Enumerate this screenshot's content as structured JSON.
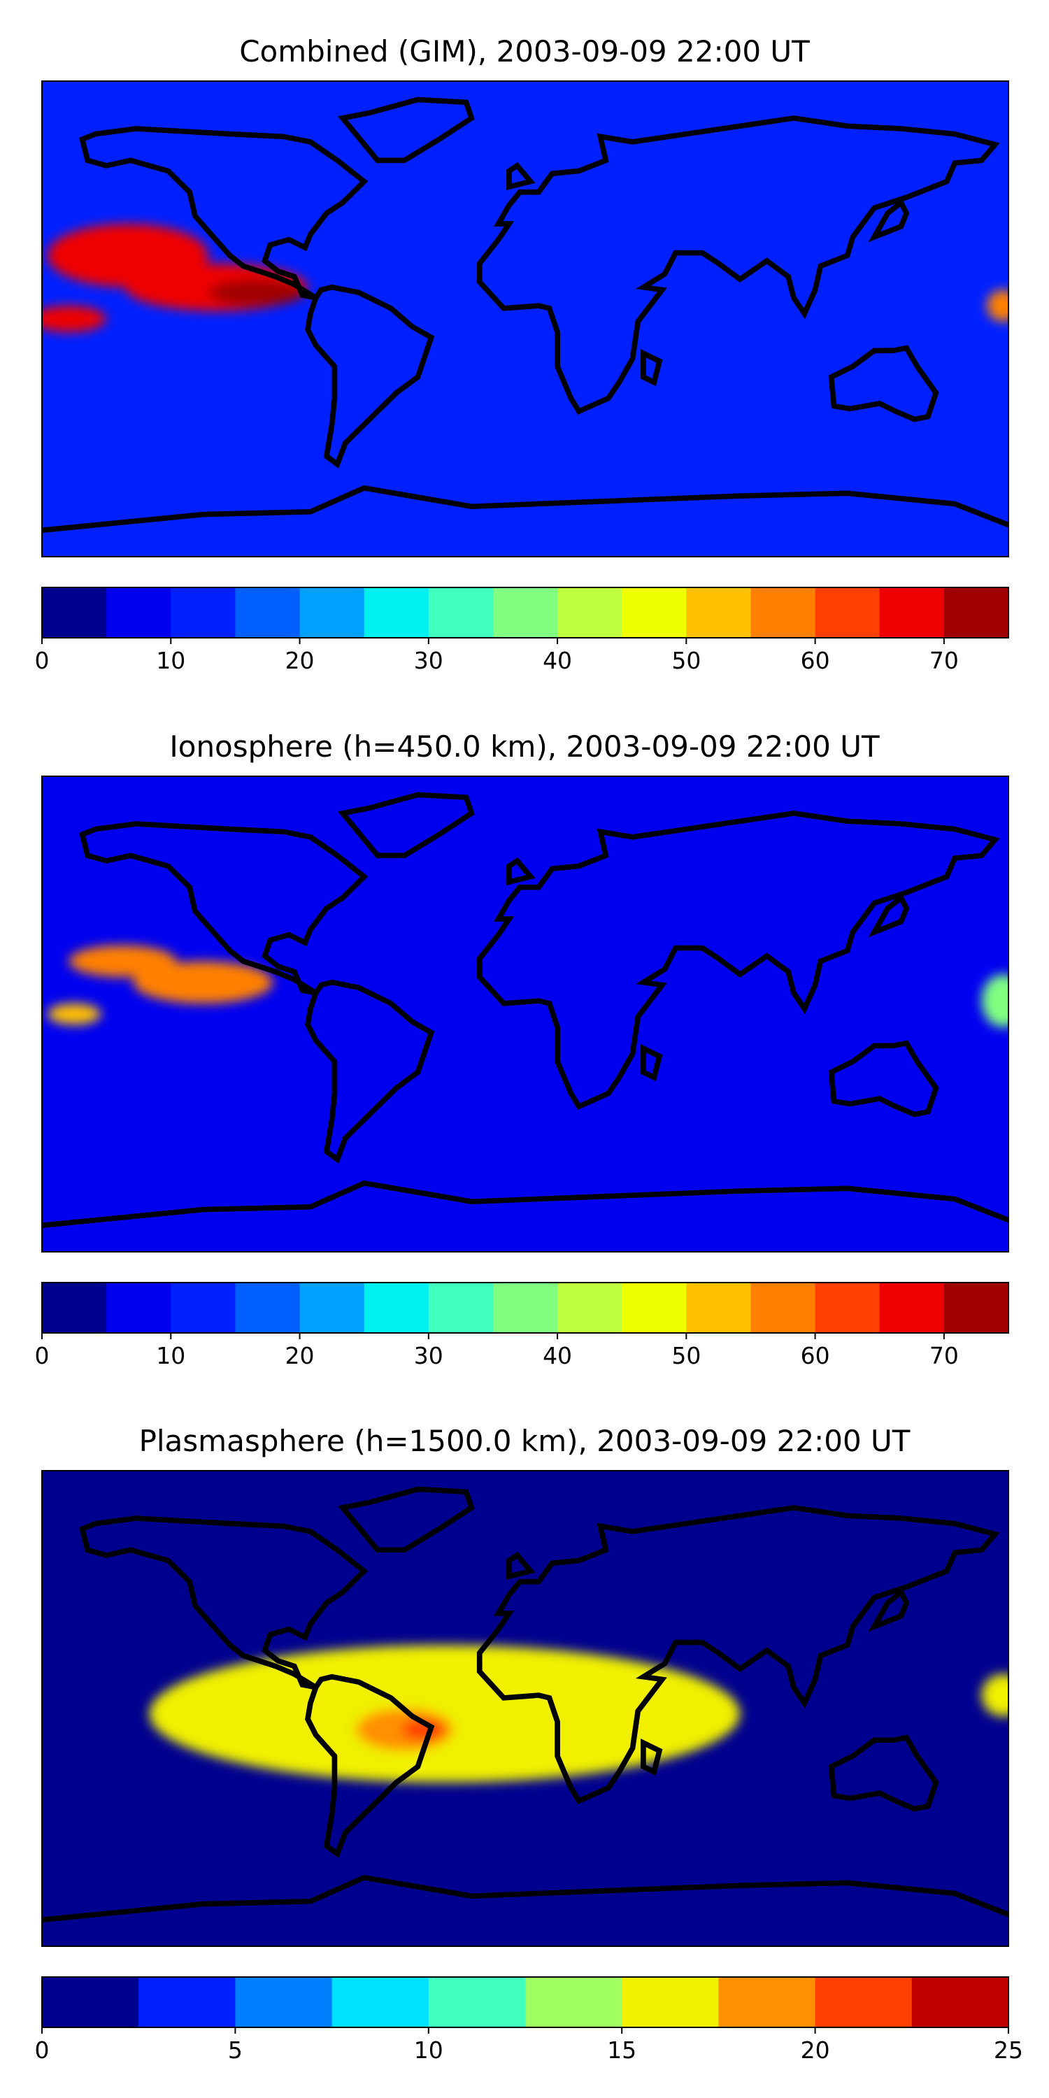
{
  "chart_data": [
    {
      "type": "heatmap",
      "title": "Combined (GIM), 2003-09-09 22:00 UT",
      "colorbar": {
        "levels": [
          0,
          5,
          10,
          15,
          20,
          25,
          30,
          35,
          40,
          45,
          50,
          55,
          60,
          65,
          70,
          75
        ],
        "tick_values": [
          0,
          10,
          20,
          30,
          40,
          50,
          60,
          70
        ],
        "tick_labels": [
          "0",
          "10",
          "20",
          "30",
          "40",
          "50",
          "60",
          "70"
        ],
        "colors": [
          "#00008f",
          "#0000ef",
          "#0020ff",
          "#0060ff",
          "#00a0ff",
          "#00f0f0",
          "#40ffbf",
          "#80ff80",
          "#bfff40",
          "#efff00",
          "#ffc000",
          "#ff8000",
          "#ff4000",
          "#ef0000",
          "#a00000"
        ]
      },
      "background_level": 2,
      "features": [
        {
          "lon": -148,
          "lat": 24,
          "rx": 30,
          "ry": 12,
          "level": 13
        },
        {
          "lon": -115,
          "lat": 12,
          "rx": 34,
          "ry": 9,
          "level": 13
        },
        {
          "lon": -100,
          "lat": 10,
          "rx": 18,
          "ry": 5,
          "level": 14
        },
        {
          "lon": -170,
          "lat": 0,
          "rx": 14,
          "ry": 5,
          "level": 13
        },
        {
          "lon": 178,
          "lat": 5,
          "rx": 6,
          "ry": 6,
          "level": 11
        }
      ]
    },
    {
      "type": "heatmap",
      "title": "Ionosphere  (h=450.0 km), 2003-09-09 22:00 UT",
      "colorbar": {
        "levels": [
          0,
          5,
          10,
          15,
          20,
          25,
          30,
          35,
          40,
          45,
          50,
          55,
          60,
          65,
          70,
          75
        ],
        "tick_values": [
          0,
          10,
          20,
          30,
          40,
          50,
          60,
          70
        ],
        "tick_labels": [
          "0",
          "10",
          "20",
          "30",
          "40",
          "50",
          "60",
          "70"
        ],
        "colors": [
          "#00008f",
          "#0000ef",
          "#0020ff",
          "#0060ff",
          "#00a0ff",
          "#00f0f0",
          "#40ffbf",
          "#80ff80",
          "#bfff40",
          "#efff00",
          "#ffc000",
          "#ff8000",
          "#ff4000",
          "#ef0000",
          "#a00000"
        ]
      },
      "background_level": 1,
      "features": [
        {
          "lon": -150,
          "lat": 20,
          "rx": 20,
          "ry": 6,
          "level": 11
        },
        {
          "lon": -120,
          "lat": 12,
          "rx": 26,
          "ry": 8,
          "level": 11
        },
        {
          "lon": -168,
          "lat": 0,
          "rx": 10,
          "ry": 4,
          "level": 10
        },
        {
          "lon": 178,
          "lat": 5,
          "rx": 8,
          "ry": 10,
          "level": 7
        }
      ]
    },
    {
      "type": "heatmap",
      "title": "Plasmasphere (h=1500.0 km), 2003-09-09 22:00 UT",
      "colorbar": {
        "levels": [
          0,
          2.5,
          5,
          7.5,
          10,
          12.5,
          15,
          17.5,
          20,
          22.5,
          25
        ],
        "tick_values": [
          0,
          5,
          10,
          15,
          20,
          25
        ],
        "tick_labels": [
          "0",
          "5",
          "10",
          "15",
          "20",
          "25"
        ],
        "colors": [
          "#00008f",
          "#0020ff",
          "#0080ff",
          "#00e0ff",
          "#40ffbf",
          "#a0ff60",
          "#f0f000",
          "#ff9000",
          "#ff4000",
          "#c00000"
        ]
      },
      "background_level": 0,
      "features": [
        {
          "lon": -30,
          "lat": -2,
          "rx": 110,
          "ry": 26,
          "level": 6
        },
        {
          "lon": -45,
          "lat": -8,
          "rx": 18,
          "ry": 8,
          "level": 7
        },
        {
          "lon": -38,
          "lat": -8,
          "rx": 8,
          "ry": 4,
          "level": 8
        },
        {
          "lon": 178,
          "lat": 5,
          "rx": 8,
          "ry": 8,
          "level": 6
        }
      ]
    }
  ]
}
